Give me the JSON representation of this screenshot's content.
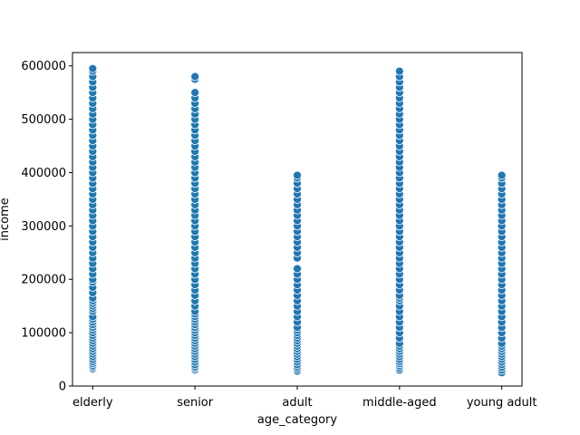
{
  "chart_data": {
    "type": "scatter",
    "xlabel": "age_category",
    "ylabel": "income",
    "categories": [
      "elderly",
      "senior",
      "adult",
      "middle-aged",
      "young adult"
    ],
    "ylim": [
      0,
      625000
    ],
    "yticks": [
      0,
      100000,
      200000,
      300000,
      400000,
      500000,
      600000
    ],
    "grid": false,
    "marker_color": "#1f77b4",
    "marker_edge_color": "#ffffff",
    "series": [
      {
        "category": "elderly",
        "values": [
          32000,
          35000,
          38000,
          42000,
          46000,
          50000,
          55000,
          60000,
          65000,
          70000,
          75000,
          80000,
          85000,
          90000,
          95000,
          100000,
          105000,
          110000,
          115000,
          120000,
          125000,
          130000,
          140000,
          145000,
          150000,
          155000,
          160000,
          165000,
          175000,
          185000,
          195000,
          200000,
          210000,
          220000,
          230000,
          240000,
          250000,
          260000,
          270000,
          280000,
          290000,
          300000,
          310000,
          320000,
          330000,
          340000,
          350000,
          360000,
          370000,
          380000,
          390000,
          400000,
          410000,
          420000,
          430000,
          440000,
          450000,
          460000,
          470000,
          480000,
          490000,
          500000,
          510000,
          520000,
          530000,
          540000,
          550000,
          560000,
          570000,
          580000,
          590000,
          595000
        ]
      },
      {
        "category": "senior",
        "values": [
          30000,
          33000,
          36000,
          40000,
          45000,
          50000,
          55000,
          60000,
          65000,
          70000,
          75000,
          80000,
          85000,
          90000,
          95000,
          100000,
          105000,
          110000,
          115000,
          120000,
          125000,
          130000,
          135000,
          140000,
          150000,
          160000,
          170000,
          180000,
          190000,
          200000,
          210000,
          220000,
          230000,
          240000,
          250000,
          260000,
          270000,
          280000,
          290000,
          300000,
          310000,
          320000,
          330000,
          340000,
          350000,
          360000,
          370000,
          380000,
          390000,
          400000,
          410000,
          420000,
          430000,
          440000,
          450000,
          460000,
          470000,
          480000,
          490000,
          500000,
          510000,
          520000,
          530000,
          540000,
          550000,
          575000,
          580000
        ]
      },
      {
        "category": "adult",
        "values": [
          28000,
          32000,
          36000,
          40000,
          45000,
          50000,
          55000,
          60000,
          65000,
          70000,
          75000,
          80000,
          85000,
          90000,
          95000,
          100000,
          105000,
          110000,
          120000,
          130000,
          140000,
          150000,
          160000,
          170000,
          180000,
          190000,
          200000,
          210000,
          220000,
          240000,
          250000,
          260000,
          270000,
          280000,
          290000,
          300000,
          310000,
          320000,
          330000,
          340000,
          350000,
          360000,
          370000,
          380000,
          390000,
          395000
        ]
      },
      {
        "category": "middle-aged",
        "values": [
          30000,
          34000,
          38000,
          42000,
          46000,
          50000,
          55000,
          60000,
          65000,
          70000,
          75000,
          80000,
          90000,
          100000,
          110000,
          120000,
          130000,
          140000,
          150000,
          160000,
          165000,
          170000,
          180000,
          190000,
          200000,
          210000,
          220000,
          230000,
          240000,
          250000,
          260000,
          270000,
          280000,
          290000,
          300000,
          310000,
          320000,
          330000,
          340000,
          350000,
          360000,
          370000,
          380000,
          390000,
          400000,
          410000,
          420000,
          430000,
          440000,
          450000,
          460000,
          470000,
          480000,
          490000,
          500000,
          510000,
          520000,
          530000,
          540000,
          550000,
          560000,
          570000,
          580000,
          590000
        ]
      },
      {
        "category": "young adult",
        "values": [
          25000,
          30000,
          35000,
          40000,
          45000,
          50000,
          55000,
          60000,
          65000,
          70000,
          75000,
          80000,
          90000,
          100000,
          110000,
          120000,
          130000,
          140000,
          150000,
          160000,
          170000,
          180000,
          190000,
          200000,
          210000,
          220000,
          230000,
          240000,
          250000,
          260000,
          270000,
          280000,
          290000,
          300000,
          310000,
          320000,
          330000,
          340000,
          350000,
          360000,
          370000,
          380000,
          390000,
          395000
        ]
      }
    ]
  }
}
